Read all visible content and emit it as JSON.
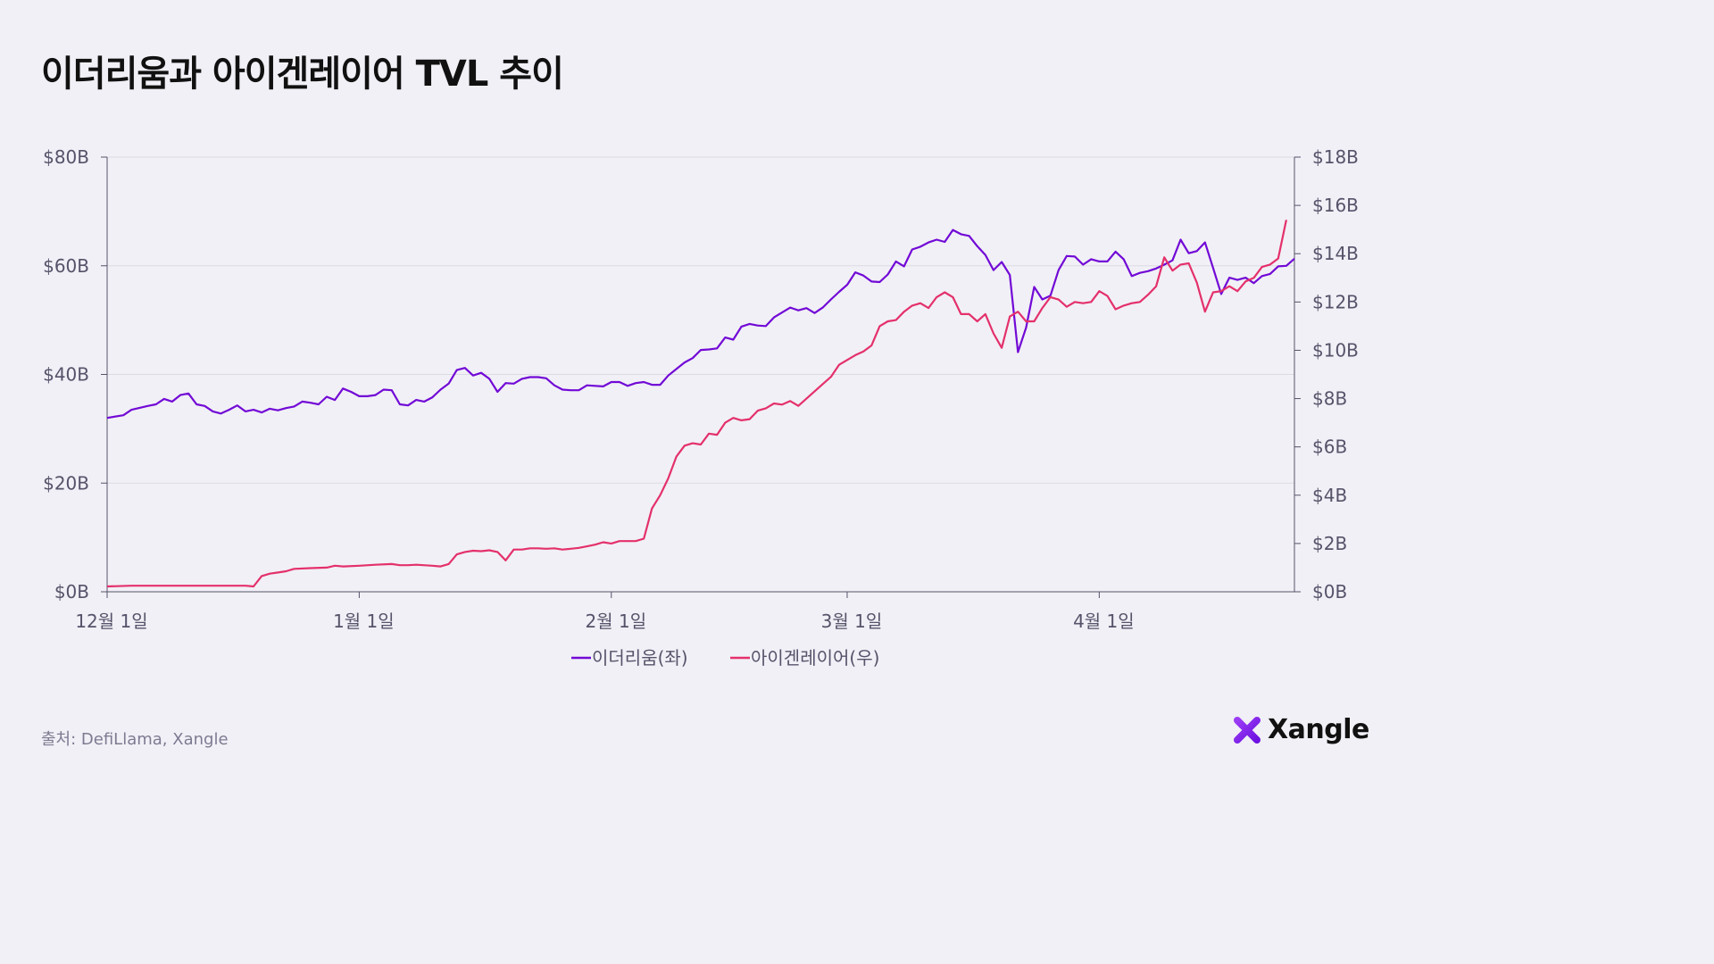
{
  "header": {
    "title": "이더리움과 아이겐레이어 TVL 추이"
  },
  "footer": {
    "source": "출처: DefiLlama, Xangle",
    "brand": "Xangle"
  },
  "colors": {
    "ethereum": "#7209d6",
    "eigenlayer": "#e4306b",
    "grid": "#dcdae4",
    "axis": "#55536a"
  },
  "chart_data": {
    "type": "line",
    "title": "이더리움과 아이겐레이어 TVL 추이",
    "x_range": [
      "12월 1일",
      "4월 20일"
    ],
    "x_ticks": [
      {
        "label": "12월 1일",
        "day": 0
      },
      {
        "label": "1월 1일",
        "day": 31
      },
      {
        "label": "2월 1일",
        "day": 62
      },
      {
        "label": "3월 1일",
        "day": 91
      },
      {
        "label": "4월 1일",
        "day": 122
      }
    ],
    "y_left": {
      "ticks": [
        "$0B",
        "$20B",
        "$40B",
        "$60B",
        "$80B"
      ],
      "min": 0,
      "max": 80,
      "unit": "$B"
    },
    "y_right": {
      "ticks": [
        "$0B",
        "$2B",
        "$4B",
        "$6B",
        "$8B",
        "$10B",
        "$12B",
        "$14B",
        "$16B",
        "$18B"
      ],
      "min": 0,
      "max": 18,
      "unit": "$B"
    },
    "grid": true,
    "legend_position": "bottom-center",
    "series": [
      {
        "name": "이더리움(좌)",
        "axis": "left",
        "points": [
          [
            0,
            32.0
          ],
          [
            2,
            32.5
          ],
          [
            3,
            33.5
          ],
          [
            5,
            34.2
          ],
          [
            6,
            34.5
          ],
          [
            7,
            35.5
          ],
          [
            8,
            35.0
          ],
          [
            9,
            36.2
          ],
          [
            10,
            36.5
          ],
          [
            11,
            34.5
          ],
          [
            12,
            34.2
          ],
          [
            13,
            33.2
          ],
          [
            14,
            32.8
          ],
          [
            15,
            33.5
          ],
          [
            16,
            34.3
          ],
          [
            17,
            33.2
          ],
          [
            18,
            33.5
          ],
          [
            19,
            33.0
          ],
          [
            20,
            33.7
          ],
          [
            21,
            33.4
          ],
          [
            22,
            33.8
          ],
          [
            23,
            34.1
          ],
          [
            24,
            35.0
          ],
          [
            25,
            34.8
          ],
          [
            26,
            34.5
          ],
          [
            27,
            35.9
          ],
          [
            28,
            35.3
          ],
          [
            29,
            37.4
          ],
          [
            30,
            36.8
          ],
          [
            31,
            36.0
          ],
          [
            32,
            36.0
          ],
          [
            33,
            36.2
          ],
          [
            34,
            37.2
          ],
          [
            35,
            37.1
          ],
          [
            36,
            34.5
          ],
          [
            37,
            34.3
          ],
          [
            38,
            35.3
          ],
          [
            39,
            35.0
          ],
          [
            40,
            35.8
          ],
          [
            41,
            37.2
          ],
          [
            42,
            38.3
          ],
          [
            43,
            40.8
          ],
          [
            44,
            41.2
          ],
          [
            45,
            39.8
          ],
          [
            46,
            40.3
          ],
          [
            47,
            39.2
          ],
          [
            48,
            36.8
          ],
          [
            49,
            38.4
          ],
          [
            50,
            38.3
          ],
          [
            51,
            39.2
          ],
          [
            52,
            39.5
          ],
          [
            53,
            39.5
          ],
          [
            54,
            39.3
          ],
          [
            55,
            38.0
          ],
          [
            56,
            37.2
          ],
          [
            57,
            37.1
          ],
          [
            58,
            37.1
          ],
          [
            59,
            38.0
          ],
          [
            60,
            37.9
          ],
          [
            61,
            37.8
          ],
          [
            62,
            38.6
          ],
          [
            63,
            38.6
          ],
          [
            64,
            37.9
          ],
          [
            65,
            38.4
          ],
          [
            66,
            38.6
          ],
          [
            67,
            38.1
          ],
          [
            68,
            38.1
          ],
          [
            69,
            39.8
          ],
          [
            70,
            41.0
          ],
          [
            71,
            42.2
          ],
          [
            72,
            43.0
          ],
          [
            73,
            44.5
          ],
          [
            74,
            44.6
          ],
          [
            75,
            44.8
          ],
          [
            76,
            46.8
          ],
          [
            77,
            46.4
          ],
          [
            78,
            48.8
          ],
          [
            79,
            49.3
          ],
          [
            80,
            49.0
          ],
          [
            81,
            48.9
          ],
          [
            82,
            50.5
          ],
          [
            83,
            51.4
          ],
          [
            84,
            52.3
          ],
          [
            85,
            51.8
          ],
          [
            86,
            52.2
          ],
          [
            87,
            51.3
          ],
          [
            88,
            52.3
          ],
          [
            89,
            53.8
          ],
          [
            90,
            55.2
          ],
          [
            91,
            56.5
          ],
          [
            92,
            58.8
          ],
          [
            93,
            58.2
          ],
          [
            94,
            57.1
          ],
          [
            95,
            57.0
          ],
          [
            96,
            58.4
          ],
          [
            97,
            60.8
          ],
          [
            98,
            59.9
          ],
          [
            99,
            63.0
          ],
          [
            100,
            63.5
          ],
          [
            101,
            64.3
          ],
          [
            102,
            64.8
          ],
          [
            103,
            64.4
          ],
          [
            104,
            66.6
          ],
          [
            105,
            65.8
          ],
          [
            106,
            65.5
          ],
          [
            107,
            63.6
          ],
          [
            108,
            62.0
          ],
          [
            109,
            59.2
          ],
          [
            110,
            60.7
          ],
          [
            111,
            58.3
          ],
          [
            112,
            44.1
          ],
          [
            113,
            48.6
          ],
          [
            114,
            56.1
          ],
          [
            115,
            53.8
          ],
          [
            116,
            54.5
          ],
          [
            117,
            59.2
          ],
          [
            118,
            61.8
          ],
          [
            119,
            61.7
          ],
          [
            120,
            60.2
          ],
          [
            121,
            61.2
          ],
          [
            122,
            60.8
          ],
          [
            123,
            60.8
          ],
          [
            124,
            62.6
          ],
          [
            125,
            61.2
          ],
          [
            126,
            58.1
          ],
          [
            127,
            58.7
          ],
          [
            128,
            59.0
          ],
          [
            129,
            59.5
          ],
          [
            130,
            60.2
          ],
          [
            131,
            61.0
          ],
          [
            132,
            64.8
          ],
          [
            133,
            62.3
          ],
          [
            134,
            62.7
          ],
          [
            135,
            64.3
          ],
          [
            136,
            59.6
          ],
          [
            137,
            54.8
          ],
          [
            138,
            57.8
          ],
          [
            139,
            57.4
          ],
          [
            140,
            57.8
          ],
          [
            141,
            56.8
          ],
          [
            142,
            58.1
          ],
          [
            143,
            58.5
          ],
          [
            144,
            59.9
          ],
          [
            145,
            60.0
          ],
          [
            146,
            61.3
          ]
        ]
      },
      {
        "name": "아이겐레이어(우)",
        "axis": "right",
        "points": [
          [
            0,
            0.22
          ],
          [
            3,
            0.25
          ],
          [
            10,
            0.25
          ],
          [
            17,
            0.25
          ],
          [
            18,
            0.22
          ],
          [
            19,
            0.65
          ],
          [
            20,
            0.75
          ],
          [
            21,
            0.8
          ],
          [
            22,
            0.85
          ],
          [
            23,
            0.95
          ],
          [
            25,
            0.98
          ],
          [
            27,
            1.0
          ],
          [
            28,
            1.08
          ],
          [
            29,
            1.05
          ],
          [
            31,
            1.08
          ],
          [
            33,
            1.12
          ],
          [
            35,
            1.15
          ],
          [
            36,
            1.1
          ],
          [
            37,
            1.1
          ],
          [
            38,
            1.12
          ],
          [
            40,
            1.08
          ],
          [
            41,
            1.05
          ],
          [
            42,
            1.15
          ],
          [
            43,
            1.55
          ],
          [
            44,
            1.65
          ],
          [
            45,
            1.7
          ],
          [
            46,
            1.68
          ],
          [
            47,
            1.72
          ],
          [
            48,
            1.65
          ],
          [
            49,
            1.3
          ],
          [
            50,
            1.75
          ],
          [
            51,
            1.75
          ],
          [
            52,
            1.8
          ],
          [
            53,
            1.8
          ],
          [
            54,
            1.78
          ],
          [
            55,
            1.8
          ],
          [
            56,
            1.75
          ],
          [
            57,
            1.78
          ],
          [
            58,
            1.82
          ],
          [
            59,
            1.88
          ],
          [
            60,
            1.95
          ],
          [
            61,
            2.05
          ],
          [
            62,
            2.0
          ],
          [
            63,
            2.1
          ],
          [
            64,
            2.1
          ],
          [
            65,
            2.1
          ],
          [
            66,
            2.2
          ],
          [
            67,
            3.45
          ],
          [
            68,
            4.0
          ],
          [
            69,
            4.7
          ],
          [
            70,
            5.6
          ],
          [
            71,
            6.05
          ],
          [
            72,
            6.15
          ],
          [
            73,
            6.1
          ],
          [
            74,
            6.55
          ],
          [
            75,
            6.5
          ],
          [
            76,
            7.0
          ],
          [
            77,
            7.2
          ],
          [
            78,
            7.1
          ],
          [
            79,
            7.15
          ],
          [
            80,
            7.5
          ],
          [
            81,
            7.6
          ],
          [
            82,
            7.8
          ],
          [
            83,
            7.75
          ],
          [
            84,
            7.9
          ],
          [
            85,
            7.7
          ],
          [
            86,
            8.0
          ],
          [
            87,
            8.3
          ],
          [
            88,
            8.6
          ],
          [
            89,
            8.9
          ],
          [
            90,
            9.4
          ],
          [
            91,
            9.6
          ],
          [
            92,
            9.8
          ],
          [
            93,
            9.95
          ],
          [
            94,
            10.2
          ],
          [
            95,
            11.0
          ],
          [
            96,
            11.2
          ],
          [
            97,
            11.25
          ],
          [
            98,
            11.6
          ],
          [
            99,
            11.85
          ],
          [
            100,
            11.95
          ],
          [
            101,
            11.75
          ],
          [
            102,
            12.2
          ],
          [
            103,
            12.4
          ],
          [
            104,
            12.2
          ],
          [
            105,
            11.5
          ],
          [
            106,
            11.5
          ],
          [
            107,
            11.2
          ],
          [
            108,
            11.5
          ],
          [
            109,
            10.7
          ],
          [
            110,
            10.1
          ],
          [
            111,
            11.4
          ],
          [
            112,
            11.6
          ],
          [
            113,
            11.2
          ],
          [
            114,
            11.2
          ],
          [
            115,
            11.75
          ],
          [
            116,
            12.2
          ],
          [
            117,
            12.1
          ],
          [
            118,
            11.8
          ],
          [
            119,
            12.0
          ],
          [
            120,
            11.95
          ],
          [
            121,
            12.0
          ],
          [
            122,
            12.45
          ],
          [
            123,
            12.25
          ],
          [
            124,
            11.7
          ],
          [
            125,
            11.85
          ],
          [
            126,
            11.95
          ],
          [
            127,
            12.0
          ],
          [
            128,
            12.3
          ],
          [
            129,
            12.65
          ],
          [
            130,
            13.85
          ],
          [
            131,
            13.3
          ],
          [
            132,
            13.55
          ],
          [
            133,
            13.6
          ],
          [
            134,
            12.8
          ],
          [
            135,
            11.6
          ],
          [
            136,
            12.4
          ],
          [
            137,
            12.45
          ],
          [
            138,
            12.65
          ],
          [
            139,
            12.45
          ],
          [
            140,
            12.85
          ],
          [
            141,
            13.0
          ],
          [
            142,
            13.45
          ],
          [
            143,
            13.55
          ],
          [
            144,
            13.8
          ],
          [
            145,
            15.4
          ]
        ]
      }
    ]
  }
}
